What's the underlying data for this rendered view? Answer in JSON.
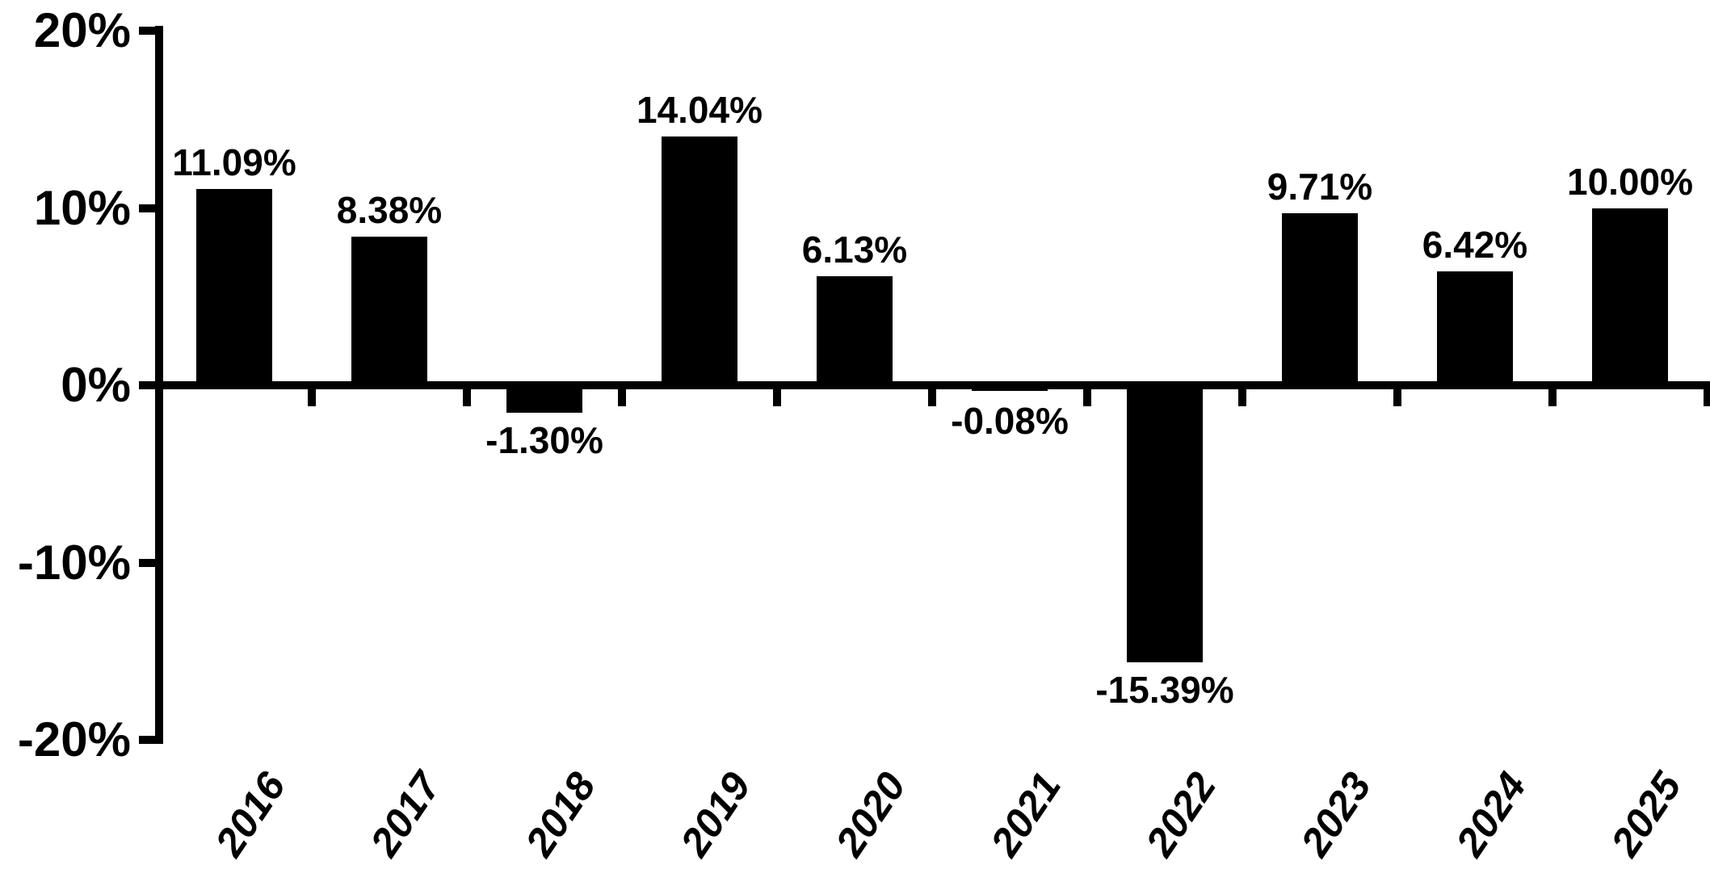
{
  "chart_data": {
    "type": "bar",
    "title": "",
    "xlabel": "",
    "ylabel": "",
    "categories": [
      "2016",
      "2017",
      "2018",
      "2019",
      "2020",
      "2021",
      "2022",
      "2023",
      "2024",
      "2025"
    ],
    "values": [
      11.09,
      8.38,
      -1.3,
      14.04,
      6.13,
      -0.08,
      -15.39,
      9.71,
      6.42,
      10.0
    ],
    "value_labels": [
      "11.09%",
      "8.38%",
      "-1.30%",
      "14.04%",
      "6.13%",
      "-0.08%",
      "-15.39%",
      "9.71%",
      "6.42%",
      "10.00%"
    ],
    "ylim": [
      -20,
      20
    ],
    "yticks": [
      {
        "value": 20,
        "label": "20%"
      },
      {
        "value": 10,
        "label": "10%"
      },
      {
        "value": 0,
        "label": "0%"
      },
      {
        "value": -10,
        "label": "-10%"
      },
      {
        "value": -20,
        "label": "-20%"
      }
    ],
    "grid": false,
    "legend": null,
    "bar_color": "#000000",
    "axis_color": "#000000",
    "background_color": "#ffffff"
  }
}
